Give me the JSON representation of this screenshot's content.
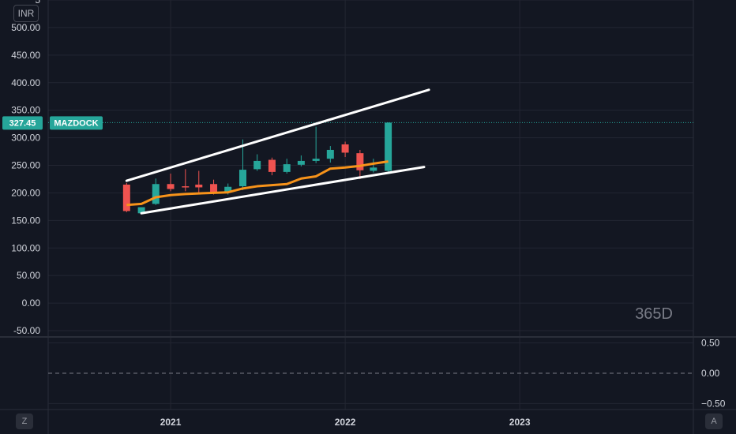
{
  "currency": "INR",
  "axis_buttons": {
    "left": "Z",
    "right": "A"
  },
  "price_label": {
    "value": "327.45",
    "symbol": "MAZDOCK"
  },
  "interval_watermark": "365D",
  "colors": {
    "background": "#131722",
    "grid": "#232632",
    "up": "#26a69a",
    "down": "#ef5350",
    "ma": "#f7931a",
    "trendline": "#ffffff",
    "price_line": "#26a69a"
  },
  "chart_data": [
    {
      "type": "candlestick",
      "ylim": [
        -60,
        550
      ],
      "y_ticks": [
        "-50.00",
        "0.00",
        "50.00",
        "100.00",
        "150.00",
        "200.00",
        "250.00",
        "300.00",
        "350.00",
        "400.00",
        "450.00",
        "500.00"
      ],
      "top_tick_partial": "5",
      "x_ticks": [
        "2021",
        "2022",
        "2023"
      ],
      "xlim": [
        "2020-04-20",
        "2023-12-30"
      ],
      "candles": [
        {
          "date": "2020-10-01",
          "open": 215,
          "high": 218,
          "low": 165,
          "close": 167
        },
        {
          "date": "2020-11-01",
          "open": 163,
          "high": 172,
          "low": 162,
          "close": 174
        },
        {
          "date": "2020-12-01",
          "open": 180,
          "high": 226,
          "low": 178,
          "close": 216
        },
        {
          "date": "2021-01-01",
          "open": 216,
          "high": 235,
          "low": 203,
          "close": 207
        },
        {
          "date": "2021-02-01",
          "open": 212,
          "high": 243,
          "low": 203,
          "close": 211
        },
        {
          "date": "2021-03-01",
          "open": 215,
          "high": 240,
          "low": 200,
          "close": 210
        },
        {
          "date": "2021-04-01",
          "open": 216,
          "high": 224,
          "low": 197,
          "close": 202
        },
        {
          "date": "2021-05-01",
          "open": 201,
          "high": 217,
          "low": 197,
          "close": 211
        },
        {
          "date": "2021-06-01",
          "open": 212,
          "high": 297,
          "low": 205,
          "close": 242
        },
        {
          "date": "2021-07-01",
          "open": 243,
          "high": 270,
          "low": 240,
          "close": 258
        },
        {
          "date": "2021-08-01",
          "open": 260,
          "high": 264,
          "low": 232,
          "close": 238
        },
        {
          "date": "2021-09-01",
          "open": 238,
          "high": 262,
          "low": 235,
          "close": 252
        },
        {
          "date": "2021-10-01",
          "open": 251,
          "high": 268,
          "low": 248,
          "close": 258
        },
        {
          "date": "2021-11-01",
          "open": 258,
          "high": 320,
          "low": 254,
          "close": 262
        },
        {
          "date": "2021-12-01",
          "open": 262,
          "high": 285,
          "low": 255,
          "close": 278
        },
        {
          "date": "2022-01-01",
          "open": 288,
          "high": 293,
          "low": 265,
          "close": 273
        },
        {
          "date": "2022-02-01",
          "open": 272,
          "high": 278,
          "low": 225,
          "close": 241
        },
        {
          "date": "2022-03-01",
          "open": 240,
          "high": 262,
          "low": 237,
          "close": 246
        },
        {
          "date": "2022-04-01",
          "open": 240,
          "high": 328,
          "low": 238,
          "close": 327.45
        }
      ],
      "moving_average": [
        {
          "date": "2020-10-01",
          "value": 178
        },
        {
          "date": "2020-11-01",
          "value": 180
        },
        {
          "date": "2020-12-01",
          "value": 192
        },
        {
          "date": "2021-01-01",
          "value": 196
        },
        {
          "date": "2021-02-01",
          "value": 198
        },
        {
          "date": "2021-03-01",
          "value": 199
        },
        {
          "date": "2021-04-01",
          "value": 200
        },
        {
          "date": "2021-05-01",
          "value": 201
        },
        {
          "date": "2021-06-01",
          "value": 208
        },
        {
          "date": "2021-07-01",
          "value": 212
        },
        {
          "date": "2021-08-01",
          "value": 214
        },
        {
          "date": "2021-09-01",
          "value": 216
        },
        {
          "date": "2021-10-01",
          "value": 226
        },
        {
          "date": "2021-11-01",
          "value": 230
        },
        {
          "date": "2021-12-01",
          "value": 244
        },
        {
          "date": "2022-01-01",
          "value": 246
        },
        {
          "date": "2022-02-01",
          "value": 249
        },
        {
          "date": "2022-03-01",
          "value": 253
        },
        {
          "date": "2022-04-01",
          "value": 257
        }
      ],
      "trendlines": [
        {
          "start": {
            "date": "2020-10-01",
            "value": 222
          },
          "end": {
            "date": "2022-06-25",
            "value": 387
          }
        },
        {
          "start": {
            "date": "2020-11-01",
            "value": 163
          },
          "end": {
            "date": "2022-06-15",
            "value": 247
          }
        }
      ],
      "last_price": 327.45
    },
    {
      "type": "line",
      "ylim": [
        -0.6,
        0.6
      ],
      "y_ticks": [
        "0.50",
        "0.00",
        "−0.50"
      ],
      "zero_line": "dashed"
    }
  ]
}
